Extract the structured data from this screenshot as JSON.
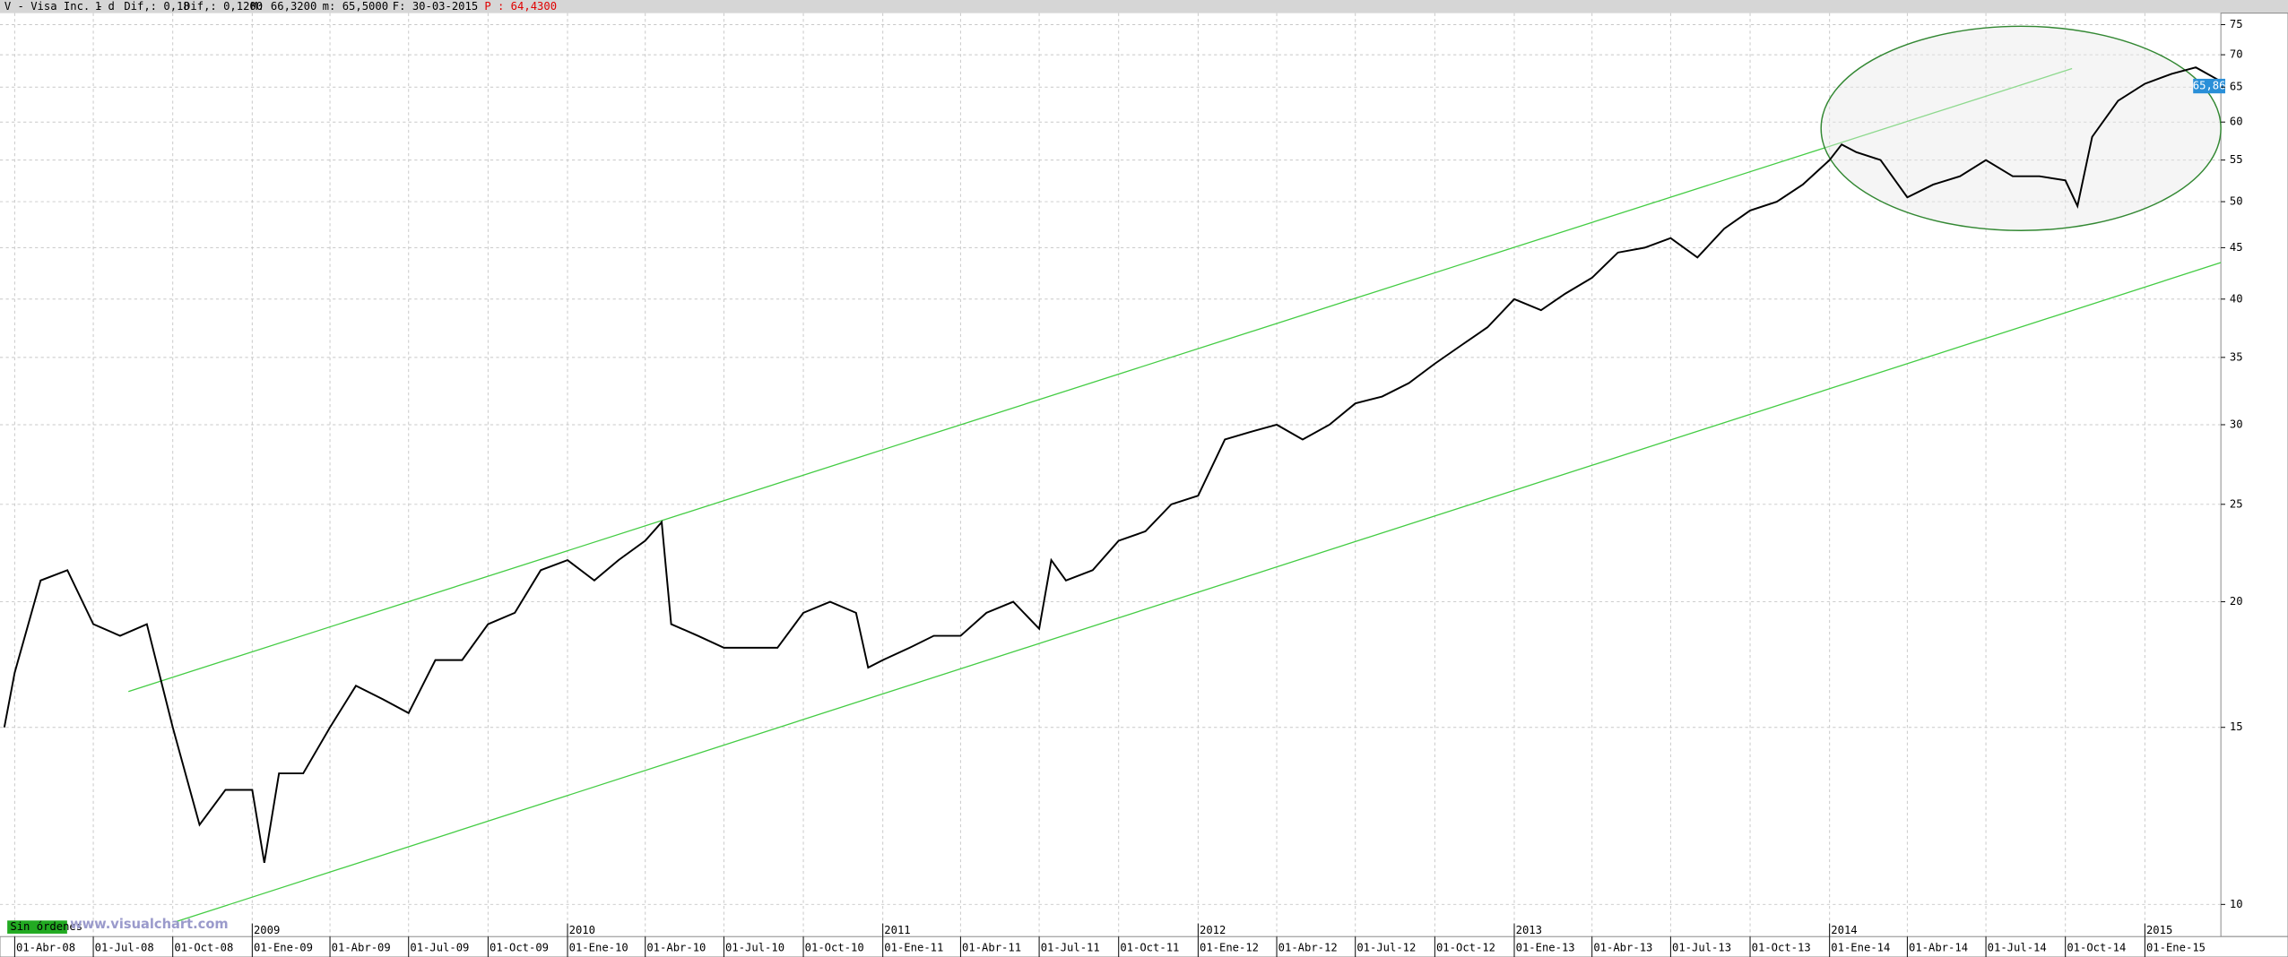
{
  "chart_data": {
    "type": "line",
    "header": {
      "symbol": "V - Visa Inc. -",
      "period": "1 d",
      "dif_pct": "Dif,: 0,18",
      "dif": "Dif,: 0,1200",
      "max": "M: 66,3200",
      "min": "m: 65,5000",
      "date": "F: 30-03-2015",
      "price": "P : 64,4300"
    },
    "last_price_label": "65,86",
    "status_label": "Sin órdenes",
    "watermark": "www.visualchart.com",
    "log_scale": true,
    "grid": true,
    "color": "#000000",
    "xlim": [
      "2008-03-15",
      "2015-03-30"
    ],
    "ylim": [
      9.29,
      77
    ],
    "yticks": [
      10,
      15,
      20,
      25,
      30,
      35,
      40,
      45,
      50,
      55,
      60,
      65,
      70,
      75
    ],
    "xticks": [
      {
        "value": "2008-04-01",
        "label": "01-Abr-08"
      },
      {
        "value": "2008-07-01",
        "label": "01-Jul-08"
      },
      {
        "value": "2008-10-01",
        "label": "01-Oct-08"
      },
      {
        "value": "2009-01-01",
        "label": "01-Ene-09"
      },
      {
        "value": "2009-04-01",
        "label": "01-Abr-09"
      },
      {
        "value": "2009-07-01",
        "label": "01-Jul-09"
      },
      {
        "value": "2009-10-01",
        "label": "01-Oct-09"
      },
      {
        "value": "2010-01-01",
        "label": "01-Ene-10"
      },
      {
        "value": "2010-04-01",
        "label": "01-Abr-10"
      },
      {
        "value": "2010-07-01",
        "label": "01-Jul-10"
      },
      {
        "value": "2010-10-01",
        "label": "01-Oct-10"
      },
      {
        "value": "2011-01-01",
        "label": "01-Ene-11"
      },
      {
        "value": "2011-04-01",
        "label": "01-Abr-11"
      },
      {
        "value": "2011-07-01",
        "label": "01-Jul-11"
      },
      {
        "value": "2011-10-01",
        "label": "01-Oct-11"
      },
      {
        "value": "2012-01-01",
        "label": "01-Ene-12"
      },
      {
        "value": "2012-04-01",
        "label": "01-Abr-12"
      },
      {
        "value": "2012-07-01",
        "label": "01-Jul-12"
      },
      {
        "value": "2012-10-01",
        "label": "01-Oct-12"
      },
      {
        "value": "2013-01-01",
        "label": "01-Ene-13"
      },
      {
        "value": "2013-04-01",
        "label": "01-Abr-13"
      },
      {
        "value": "2013-07-01",
        "label": "01-Jul-13"
      },
      {
        "value": "2013-10-01",
        "label": "01-Oct-13"
      },
      {
        "value": "2014-01-01",
        "label": "01-Ene-14"
      },
      {
        "value": "2014-04-01",
        "label": "01-Abr-14"
      },
      {
        "value": "2014-07-01",
        "label": "01-Jul-14"
      },
      {
        "value": "2014-10-01",
        "label": "01-Oct-14"
      },
      {
        "value": "2015-01-01",
        "label": "01-Ene-15"
      }
    ],
    "year_ticks": [
      {
        "value": "2009-01-01",
        "label": "2009"
      },
      {
        "value": "2010-01-01",
        "label": "2010"
      },
      {
        "value": "2011-01-01",
        "label": "2011"
      },
      {
        "value": "2012-01-01",
        "label": "2012"
      },
      {
        "value": "2013-01-01",
        "label": "2013"
      },
      {
        "value": "2014-01-01",
        "label": "2014"
      },
      {
        "value": "2015-01-01",
        "label": "2015"
      }
    ],
    "series": [
      {
        "name": "V",
        "color": "#000000",
        "x": [
          "2008-03-20",
          "2008-04-01",
          "2008-05-01",
          "2008-06-01",
          "2008-07-01",
          "2008-08-01",
          "2008-09-01",
          "2008-10-01",
          "2008-11-01",
          "2008-12-01",
          "2009-01-01",
          "2009-01-15",
          "2009-02-01",
          "2009-03-01",
          "2009-04-01",
          "2009-05-01",
          "2009-06-01",
          "2009-07-01",
          "2009-08-01",
          "2009-09-01",
          "2009-10-01",
          "2009-11-01",
          "2009-12-01",
          "2010-01-01",
          "2010-02-01",
          "2010-03-01",
          "2010-04-01",
          "2010-04-20",
          "2010-05-01",
          "2010-06-01",
          "2010-07-01",
          "2010-08-01",
          "2010-09-01",
          "2010-10-01",
          "2010-11-01",
          "2010-12-01",
          "2010-12-15",
          "2011-01-01",
          "2011-02-01",
          "2011-03-01",
          "2011-04-01",
          "2011-05-01",
          "2011-06-01",
          "2011-07-01",
          "2011-07-15",
          "2011-08-01",
          "2011-09-01",
          "2011-10-01",
          "2011-11-01",
          "2011-12-01",
          "2012-01-01",
          "2012-02-01",
          "2012-03-01",
          "2012-04-01",
          "2012-05-01",
          "2012-06-01",
          "2012-07-01",
          "2012-08-01",
          "2012-09-01",
          "2012-10-01",
          "2012-11-01",
          "2012-12-01",
          "2013-01-01",
          "2013-02-01",
          "2013-03-01",
          "2013-04-01",
          "2013-05-01",
          "2013-06-01",
          "2013-07-01",
          "2013-08-01",
          "2013-09-01",
          "2013-10-01",
          "2013-11-01",
          "2013-12-01",
          "2014-01-01",
          "2014-01-15",
          "2014-02-01",
          "2014-03-01",
          "2014-04-01",
          "2014-05-01",
          "2014-06-01",
          "2014-07-01",
          "2014-08-01",
          "2014-09-01",
          "2014-10-01",
          "2014-10-15",
          "2014-11-01",
          "2014-12-01",
          "2015-01-01",
          "2015-02-01",
          "2015-03-01",
          "2015-03-30"
        ],
        "values": [
          15,
          17,
          21,
          21.5,
          19,
          18.5,
          19,
          15,
          12,
          13,
          13,
          11,
          13.5,
          13.5,
          15,
          16.5,
          16,
          15.5,
          17.5,
          17.5,
          19,
          19.5,
          21.5,
          22,
          21,
          22,
          23,
          24,
          19,
          18.5,
          18,
          18,
          18,
          19.5,
          20,
          19.5,
          17.2,
          17.5,
          18,
          18.5,
          18.5,
          19.5,
          20,
          18.8,
          22,
          21,
          21.5,
          23,
          23.5,
          25,
          25.5,
          29,
          29.5,
          30,
          29,
          30,
          31.5,
          32,
          33,
          34.5,
          36,
          37.5,
          40,
          39,
          40.5,
          42,
          44.5,
          45,
          46,
          44,
          47,
          49,
          50,
          52,
          55,
          57,
          56,
          55,
          50.5,
          52,
          53,
          55,
          53,
          53,
          52.5,
          49.5,
          58,
          63,
          65.5,
          67,
          68,
          65.86
        ]
      }
    ]
  }
}
